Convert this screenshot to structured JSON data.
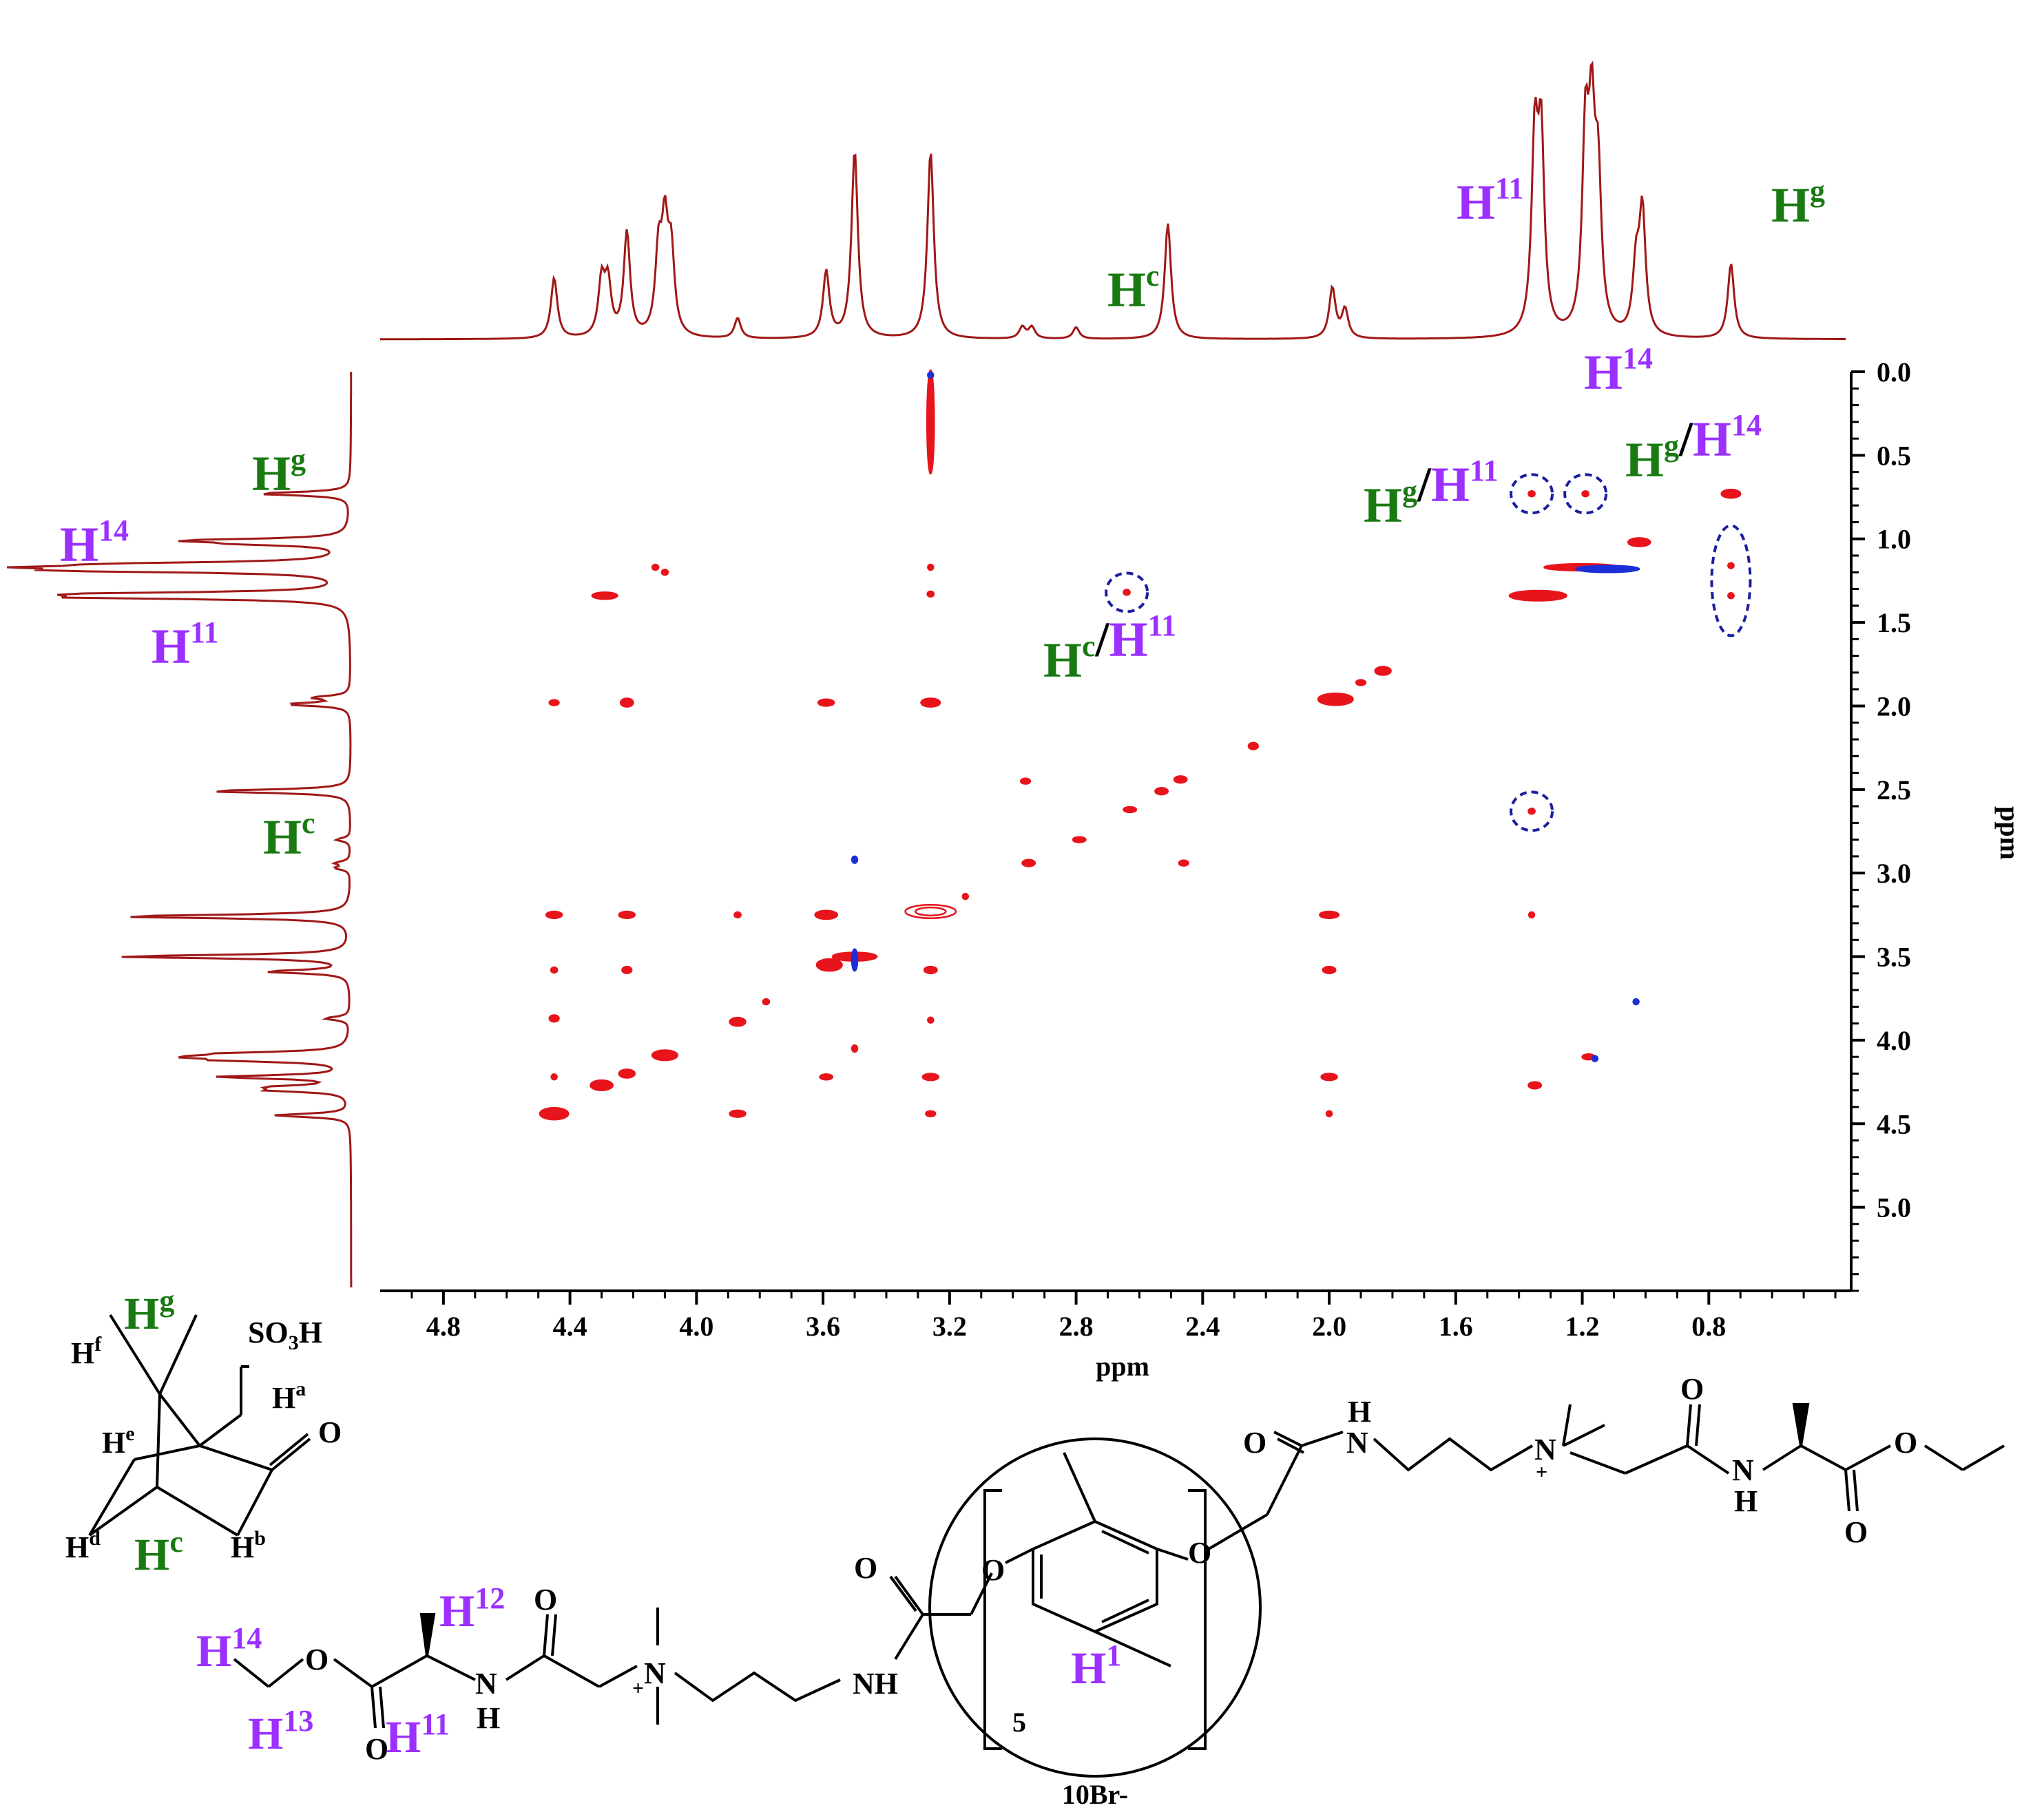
{
  "chart_data": {
    "type": "heatmap",
    "title": "",
    "xlabel": "ppm",
    "ylabel": "ppm",
    "xlim": [
      5.0,
      0.35
    ],
    "ylim": [
      0.0,
      5.5
    ],
    "x_ticks": [
      "4.8",
      "4.4",
      "4.0",
      "3.6",
      "3.2",
      "2.8",
      "2.4",
      "2.0",
      "1.6",
      "1.2",
      "0.8"
    ],
    "y_ticks": [
      "0.0",
      "0.5",
      "1.0",
      "1.5",
      "2.0",
      "2.5",
      "3.0",
      "3.5",
      "4.0",
      "4.5",
      "5.0"
    ],
    "colors": {
      "positive": "#e8141c",
      "negative": "#1c2fd6",
      "spectrum": "#a01818",
      "circle": "#1a1f9e"
    },
    "proton_spectrum_peaks": [
      {
        "ppm": 4.45,
        "h": 0.42
      },
      {
        "ppm": 4.3,
        "h": 0.38
      },
      {
        "ppm": 4.28,
        "h": 0.36
      },
      {
        "ppm": 4.22,
        "h": 0.72
      },
      {
        "ppm": 4.12,
        "h": 0.55
      },
      {
        "ppm": 4.1,
        "h": 0.7
      },
      {
        "ppm": 4.08,
        "h": 0.55
      },
      {
        "ppm": 3.87,
        "h": 0.14
      },
      {
        "ppm": 3.59,
        "h": 0.46
      },
      {
        "ppm": 3.5,
        "h": 1.3
      },
      {
        "ppm": 3.26,
        "h": 1.3
      },
      {
        "ppm": 2.97,
        "h": 0.08
      },
      {
        "ppm": 2.94,
        "h": 0.08
      },
      {
        "ppm": 2.8,
        "h": 0.08
      },
      {
        "ppm": 2.51,
        "h": 0.8
      },
      {
        "ppm": 1.99,
        "h": 0.35
      },
      {
        "ppm": 1.95,
        "h": 0.2
      },
      {
        "ppm": 1.35,
        "h": 1.3
      },
      {
        "ppm": 1.33,
        "h": 1.3
      },
      {
        "ppm": 1.19,
        "h": 1.3
      },
      {
        "ppm": 1.17,
        "h": 1.3
      },
      {
        "ppm": 1.15,
        "h": 1.0
      },
      {
        "ppm": 1.03,
        "h": 0.45
      },
      {
        "ppm": 1.01,
        "h": 0.85
      },
      {
        "ppm": 0.73,
        "h": 0.52
      }
    ],
    "cross_peaks": [
      {
        "x": 3.26,
        "y": 0.3,
        "w": 0.022,
        "h": 0.62,
        "sign": "pos"
      },
      {
        "x": 3.26,
        "y": 0.02,
        "w": 0.01,
        "h": 0.02,
        "sign": "neg"
      },
      {
        "x": 4.13,
        "y": 1.17,
        "w": 0.02,
        "h": 0.03,
        "sign": "pos"
      },
      {
        "x": 4.1,
        "y": 1.2,
        "w": 0.02,
        "h": 0.03,
        "sign": "pos"
      },
      {
        "x": 3.26,
        "y": 1.17,
        "w": 0.008,
        "h": 0.02,
        "sign": "pos"
      },
      {
        "x": 4.29,
        "y": 1.34,
        "w": 0.08,
        "h": 0.04,
        "sign": "pos"
      },
      {
        "x": 3.26,
        "y": 1.33,
        "w": 0.02,
        "h": 0.03,
        "sign": "pos"
      },
      {
        "x": 2.64,
        "y": 1.32,
        "w": 0.02,
        "h": 0.03,
        "sign": "pos"
      },
      {
        "x": 1.36,
        "y": 0.73,
        "w": 0.02,
        "h": 0.03,
        "sign": "pos"
      },
      {
        "x": 1.19,
        "y": 0.73,
        "w": 0.02,
        "h": 0.03,
        "sign": "pos"
      },
      {
        "x": 0.73,
        "y": 0.73,
        "w": 0.06,
        "h": 0.05,
        "sign": "pos"
      },
      {
        "x": 1.02,
        "y": 1.02,
        "w": 0.07,
        "h": 0.05,
        "sign": "pos"
      },
      {
        "x": 0.73,
        "y": 1.16,
        "w": 0.018,
        "h": 0.03,
        "sign": "pos"
      },
      {
        "x": 0.73,
        "y": 1.34,
        "w": 0.018,
        "h": 0.03,
        "sign": "pos"
      },
      {
        "x": 1.2,
        "y": 1.17,
        "w": 0.24,
        "h": 0.04,
        "sign": "pos"
      },
      {
        "x": 1.12,
        "y": 1.18,
        "w": 0.2,
        "h": 0.04,
        "sign": "neg"
      },
      {
        "x": 1.34,
        "y": 1.34,
        "w": 0.18,
        "h": 0.06,
        "sign": "pos"
      },
      {
        "x": 1.36,
        "y": 2.63,
        "w": 0.02,
        "h": 0.03,
        "sign": "pos"
      },
      {
        "x": 1.36,
        "y": 3.25,
        "w": 0.01,
        "h": 0.02,
        "sign": "pos"
      },
      {
        "x": 1.35,
        "y": 4.27,
        "w": 0.04,
        "h": 0.04,
        "sign": "pos"
      },
      {
        "x": 1.18,
        "y": 4.1,
        "w": 0.04,
        "h": 0.03,
        "sign": "pos"
      },
      {
        "x": 1.16,
        "y": 4.11,
        "w": 0.015,
        "h": 0.02,
        "sign": "neg"
      },
      {
        "x": 1.03,
        "y": 3.77,
        "w": 0.008,
        "h": 0.01,
        "sign": "neg"
      },
      {
        "x": 1.83,
        "y": 1.79,
        "w": 0.05,
        "h": 0.05,
        "sign": "pos"
      },
      {
        "x": 1.9,
        "y": 1.86,
        "w": 0.03,
        "h": 0.03,
        "sign": "pos"
      },
      {
        "x": 1.98,
        "y": 1.96,
        "w": 0.11,
        "h": 0.07,
        "sign": "pos"
      },
      {
        "x": 2.24,
        "y": 2.24,
        "w": 0.03,
        "h": 0.04,
        "sign": "pos"
      },
      {
        "x": 2.47,
        "y": 2.44,
        "w": 0.04,
        "h": 0.04,
        "sign": "pos"
      },
      {
        "x": 2.53,
        "y": 2.51,
        "w": 0.04,
        "h": 0.04,
        "sign": "pos"
      },
      {
        "x": 2.63,
        "y": 2.62,
        "w": 0.04,
        "h": 0.03,
        "sign": "pos"
      },
      {
        "x": 2.79,
        "y": 2.8,
        "w": 0.04,
        "h": 0.03,
        "sign": "pos"
      },
      {
        "x": 2.95,
        "y": 2.94,
        "w": 0.04,
        "h": 0.04,
        "sign": "pos"
      },
      {
        "x": 2.96,
        "y": 2.45,
        "w": 0.03,
        "h": 0.02,
        "sign": "pos"
      },
      {
        "x": 2.46,
        "y": 2.94,
        "w": 0.03,
        "h": 0.02,
        "sign": "pos"
      },
      {
        "x": 4.45,
        "y": 1.98,
        "w": 0.03,
        "h": 0.03,
        "sign": "pos"
      },
      {
        "x": 4.22,
        "y": 1.98,
        "w": 0.04,
        "h": 0.05,
        "sign": "pos"
      },
      {
        "x": 3.59,
        "y": 1.98,
        "w": 0.05,
        "h": 0.04,
        "sign": "pos"
      },
      {
        "x": 3.26,
        "y": 1.98,
        "w": 0.06,
        "h": 0.05,
        "sign": "pos"
      },
      {
        "x": 4.45,
        "y": 3.25,
        "w": 0.05,
        "h": 0.04,
        "sign": "pos"
      },
      {
        "x": 4.22,
        "y": 3.25,
        "w": 0.05,
        "h": 0.04,
        "sign": "pos"
      },
      {
        "x": 3.87,
        "y": 3.25,
        "w": 0.02,
        "h": 0.02,
        "sign": "pos"
      },
      {
        "x": 3.59,
        "y": 3.25,
        "w": 0.07,
        "h": 0.05,
        "sign": "pos"
      },
      {
        "x": 3.26,
        "y": 3.23,
        "w": 0.16,
        "h": 0.08,
        "sign": "pos"
      },
      {
        "x": 3.15,
        "y": 3.14,
        "w": 0.008,
        "h": 0.02,
        "sign": "pos"
      },
      {
        "x": 3.5,
        "y": 2.92,
        "w": 0.008,
        "h": 0.04,
        "sign": "neg"
      },
      {
        "x": 2.0,
        "y": 3.25,
        "w": 0.06,
        "h": 0.04,
        "sign": "pos"
      },
      {
        "x": 4.45,
        "y": 3.58,
        "w": 0.02,
        "h": 0.03,
        "sign": "pos"
      },
      {
        "x": 4.22,
        "y": 3.58,
        "w": 0.03,
        "h": 0.04,
        "sign": "pos"
      },
      {
        "x": 3.58,
        "y": 3.55,
        "w": 0.08,
        "h": 0.07,
        "sign": "pos"
      },
      {
        "x": 3.5,
        "y": 3.5,
        "w": 0.14,
        "h": 0.05,
        "sign": "pos"
      },
      {
        "x": 3.5,
        "y": 3.52,
        "w": 0.01,
        "h": 0.13,
        "sign": "neg"
      },
      {
        "x": 3.26,
        "y": 3.58,
        "w": 0.04,
        "h": 0.04,
        "sign": "pos"
      },
      {
        "x": 2.0,
        "y": 3.58,
        "w": 0.04,
        "h": 0.04,
        "sign": "pos"
      },
      {
        "x": 3.78,
        "y": 3.77,
        "w": 0.02,
        "h": 0.03,
        "sign": "pos"
      },
      {
        "x": 3.26,
        "y": 3.88,
        "w": 0.008,
        "h": 0.01,
        "sign": "pos"
      },
      {
        "x": 4.45,
        "y": 3.87,
        "w": 0.03,
        "h": 0.04,
        "sign": "pos"
      },
      {
        "x": 3.87,
        "y": 3.89,
        "w": 0.05,
        "h": 0.05,
        "sign": "pos"
      },
      {
        "x": 3.5,
        "y": 4.05,
        "w": 0.006,
        "h": 0.04,
        "sign": "pos"
      },
      {
        "x": 4.1,
        "y": 4.09,
        "w": 0.08,
        "h": 0.06,
        "sign": "pos"
      },
      {
        "x": 4.22,
        "y": 4.2,
        "w": 0.05,
        "h": 0.05,
        "sign": "pos"
      },
      {
        "x": 4.3,
        "y": 4.27,
        "w": 0.07,
        "h": 0.06,
        "sign": "pos"
      },
      {
        "x": 4.45,
        "y": 4.22,
        "w": 0.01,
        "h": 0.015,
        "sign": "pos"
      },
      {
        "x": 3.59,
        "y": 4.22,
        "w": 0.04,
        "h": 0.03,
        "sign": "pos"
      },
      {
        "x": 3.26,
        "y": 4.22,
        "w": 0.05,
        "h": 0.04,
        "sign": "pos"
      },
      {
        "x": 2.0,
        "y": 4.22,
        "w": 0.05,
        "h": 0.04,
        "sign": "pos"
      },
      {
        "x": 4.45,
        "y": 4.44,
        "w": 0.09,
        "h": 0.07,
        "sign": "pos"
      },
      {
        "x": 3.87,
        "y": 4.44,
        "w": 0.05,
        "h": 0.04,
        "sign": "pos"
      },
      {
        "x": 3.26,
        "y": 4.44,
        "w": 0.03,
        "h": 0.03,
        "sign": "pos"
      },
      {
        "x": 2.0,
        "y": 4.44,
        "w": 0.01,
        "h": 0.015,
        "sign": "pos"
      }
    ],
    "highlight_circles": [
      {
        "x": 2.64,
        "y": 1.32
      },
      {
        "x": 1.36,
        "y": 0.73
      },
      {
        "x": 1.19,
        "y": 0.73
      },
      {
        "x": 1.36,
        "y": 2.63
      },
      {
        "x": 0.73,
        "y": 1.25,
        "tall": true
      }
    ],
    "annotations": [
      {
        "base": "H",
        "sup": "c",
        "color": "green",
        "x": 1608,
        "y": 445
      },
      {
        "base": "H",
        "sup": "11",
        "color": "purple",
        "x": 2115,
        "y": 318
      },
      {
        "base": "H",
        "sup": "g",
        "color": "green",
        "x": 2572,
        "y": 322
      },
      {
        "base": "H",
        "sup": "14",
        "color": "purple",
        "x": 2300,
        "y": 565
      },
      {
        "base": "H",
        "sup": "g",
        "color": "green",
        "x": 366,
        "y": 712
      },
      {
        "base": "H",
        "sup": "14",
        "color": "purple",
        "x": 87,
        "y": 815
      },
      {
        "base": "H",
        "sup": "11",
        "color": "purple",
        "x": 220,
        "y": 963
      },
      {
        "base": "H",
        "sup": "c",
        "color": "green",
        "x": 382,
        "y": 1240
      },
      {
        "parts": [
          [
            "H",
            "g",
            "green"
          ],
          [
            "H",
            "11",
            "purple"
          ]
        ],
        "x": 1980,
        "y": 758
      },
      {
        "parts": [
          [
            "H",
            "g",
            "green"
          ],
          [
            "H",
            "14",
            "purple"
          ]
        ],
        "x": 2360,
        "y": 692
      },
      {
        "parts": [
          [
            "H",
            "c",
            "green"
          ],
          [
            "H",
            "11",
            "purple"
          ]
        ],
        "x": 1515,
        "y": 983
      }
    ],
    "structure_labels": {
      "camphor": {
        "hg": "H",
        "hg_sup": "g",
        "hf": "H",
        "hf_sup": "f",
        "so3h": "SO",
        "so3h_sub": "3",
        "so3h_tail": "H",
        "ha": "H",
        "ha_sup": "a",
        "o": "O",
        "he": "H",
        "he_sup": "e",
        "hd": "H",
        "hd_sup": "d",
        "hc": "H",
        "hc_sup": "c",
        "hb": "H",
        "hb_sup": "b"
      },
      "pillar": {
        "h1": "H",
        "h1_sup": "1",
        "n5": "5",
        "br": "10Br-",
        "o": "O",
        "nh": "NH",
        "n": "N",
        "h": "H",
        "plus": "+"
      },
      "guest": {
        "h14": "H",
        "h14_sup": "14",
        "h13": "H",
        "h13_sup": "13",
        "h12": "H",
        "h12_sup": "12",
        "h11": "H",
        "h11_sup": "11"
      }
    }
  }
}
